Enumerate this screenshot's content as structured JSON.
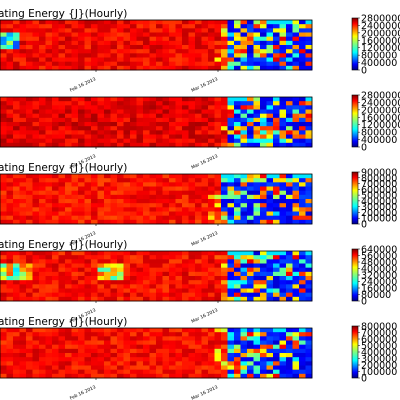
{
  "chart_data": [
    {
      "type": "heatmap",
      "title": "ating Energy {J}(Hourly)",
      "xticks": [
        "Feb 16 2013",
        "Mar 16 2013"
      ],
      "colorbar": {
        "min": 0,
        "max": 2800000,
        "ticks": [
          0,
          400000,
          800000,
          1200000,
          1600000,
          2000000,
          2400000,
          2800000
        ],
        "tick_labels": [
          "0",
          "400000",
          "800000",
          "1200000",
          "1600000",
          "2000000",
          "2400000",
          "2800000"
        ]
      },
      "colormap": "jet",
      "hot_cold_split": 0.74,
      "level": 0.88,
      "stripes": [
        [
          0.0,
          0.05,
          0.15
        ]
      ]
    },
    {
      "type": "heatmap",
      "title": "",
      "xticks": [
        "Feb 16 2013",
        "Mar 16 2013"
      ],
      "colorbar": {
        "min": 0,
        "max": 2800000,
        "ticks": [
          0,
          400000,
          800000,
          1200000,
          1600000,
          2000000,
          2400000,
          2800000
        ],
        "tick_labels": [
          "0",
          "400000",
          "800000",
          "1200000",
          "1600000",
          "2000000",
          "2400000",
          "2800000"
        ]
      },
      "colormap": "jet",
      "hot_cold_split": 0.74,
      "level": 0.9,
      "stripes": []
    },
    {
      "type": "heatmap",
      "title": "ating Energy {J}(Hourly)",
      "xticks": [
        "Feb 16 2013",
        "Mar 16 2013"
      ],
      "colorbar": {
        "min": 0,
        "max": 900000,
        "ticks": [
          0,
          100000,
          200000,
          300000,
          400000,
          500000,
          600000,
          700000,
          800000,
          900000
        ],
        "tick_labels": [
          "0",
          "100000",
          "200000",
          "300000",
          "400000",
          "500000",
          "600000",
          "700000",
          "800000",
          "900000"
        ]
      },
      "colormap": "jet",
      "hot_cold_split": 0.72,
      "level": 0.86,
      "stripes": []
    },
    {
      "type": "heatmap",
      "title": "ating Energy {J}(Hourly)",
      "xticks": [
        "Feb 16 2013",
        "Mar 16 2013"
      ],
      "colorbar": {
        "min": 0,
        "max": 640000,
        "ticks": [
          0,
          80000,
          160000,
          240000,
          320000,
          400000,
          480000,
          560000,
          640000
        ],
        "tick_labels": [
          "0",
          "80000",
          "160000",
          "240000",
          "320000",
          "400000",
          "480000",
          "560000",
          "640000"
        ]
      },
      "colormap": "jet",
      "hot_cold_split": 0.74,
      "level": 0.87,
      "stripes": [
        [
          0.0,
          0.1,
          0.35
        ],
        [
          0.3,
          0.38,
          0.35
        ]
      ]
    },
    {
      "type": "heatmap",
      "title": "ating Energy {J}(Hourly)",
      "xticks": [
        "Feb 16 2013",
        "Mar 16 2013"
      ],
      "colorbar": {
        "min": 0,
        "max": 800000,
        "ticks": [
          0,
          100000,
          200000,
          300000,
          400000,
          500000,
          600000,
          700000,
          800000
        ],
        "tick_labels": [
          "0",
          "100000",
          "200000",
          "300000",
          "400000",
          "500000",
          "600000",
          "700000",
          "800000"
        ]
      },
      "colormap": "jet",
      "hot_cold_split": 0.74,
      "level": 0.87,
      "stripes": []
    }
  ]
}
